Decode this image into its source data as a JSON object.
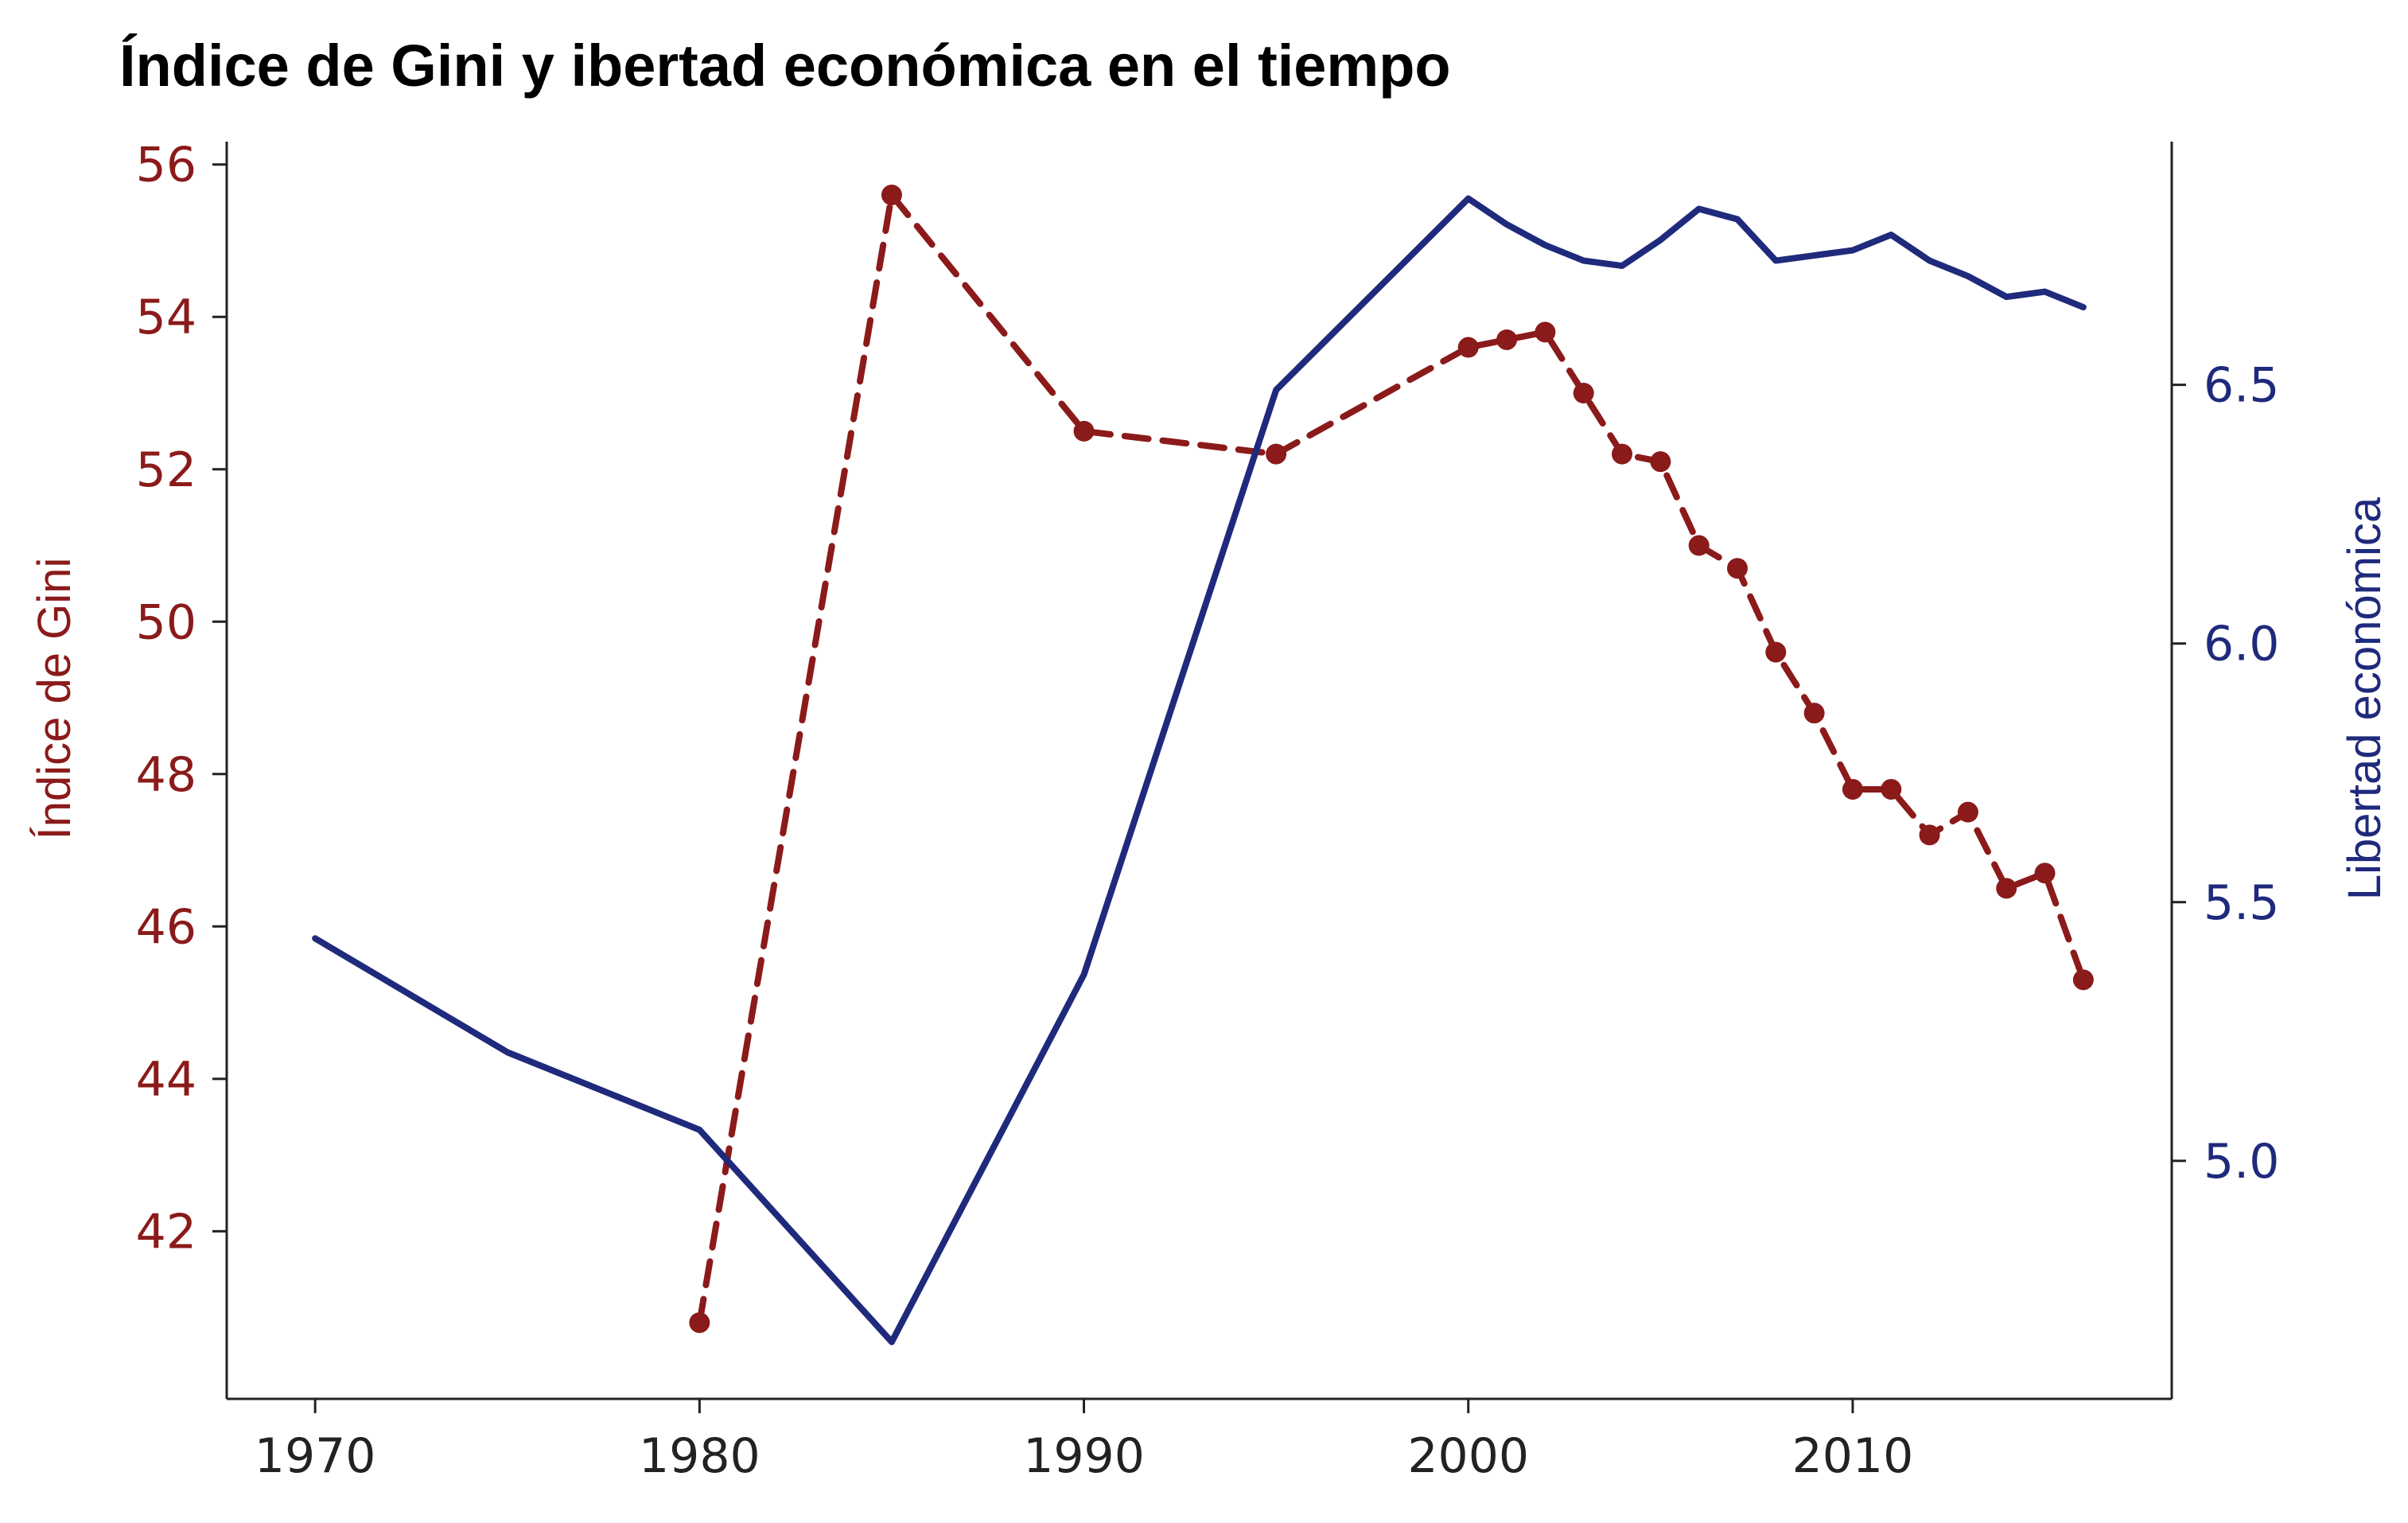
{
  "chart_data": {
    "type": "line",
    "title": "Índice de Gini y ibertad económica en el tiempo",
    "xlabel": "",
    "x_ticks": [
      1970,
      1980,
      1990,
      2000,
      2010
    ],
    "xlim": [
      1967.7,
      2018.3
    ],
    "left_axis": {
      "label": "Índice de Gini",
      "color": "#8b1a1a",
      "ylim": [
        39.8,
        56.3
      ],
      "ticks": [
        42,
        44,
        46,
        48,
        50,
        52,
        54,
        56
      ]
    },
    "right_axis": {
      "label": "Libertad económica",
      "color": "#1f2a7c",
      "ylim": [
        4.54,
        6.97
      ],
      "ticks": [
        "5.0",
        "5.5",
        "6.0",
        "6.5"
      ]
    },
    "series": [
      {
        "axis": "left",
        "style": "dashed-markers",
        "color": "#8b1a1a",
        "x": [
          1980,
          1985,
          1990,
          1995,
          2000,
          2001,
          2002,
          2003,
          2004,
          2005,
          2006,
          2007,
          2008,
          2009,
          2010,
          2011,
          2012,
          2013,
          2014,
          2015,
          2016
        ],
        "values": [
          40.8,
          55.6,
          52.5,
          52.2,
          53.6,
          53.7,
          53.8,
          53.0,
          52.2,
          52.1,
          51.0,
          50.7,
          49.6,
          48.8,
          47.8,
          47.8,
          47.2,
          47.5,
          46.5,
          46.7,
          45.3
        ]
      },
      {
        "axis": "right",
        "style": "solid",
        "color": "#1f2a7c",
        "x": [
          1970,
          1975,
          1980,
          1985,
          1990,
          1995,
          2000,
          2001,
          2002,
          2003,
          2004,
          2005,
          2006,
          2007,
          2008,
          2009,
          2010,
          2011,
          2012,
          2013,
          2014,
          2015,
          2016
        ],
        "values": [
          5.43,
          5.21,
          5.06,
          4.65,
          5.36,
          6.49,
          6.86,
          6.81,
          6.77,
          6.74,
          6.73,
          6.78,
          6.84,
          6.82,
          6.74,
          6.75,
          6.76,
          6.79,
          6.74,
          6.71,
          6.67,
          6.68,
          6.65
        ]
      }
    ]
  }
}
